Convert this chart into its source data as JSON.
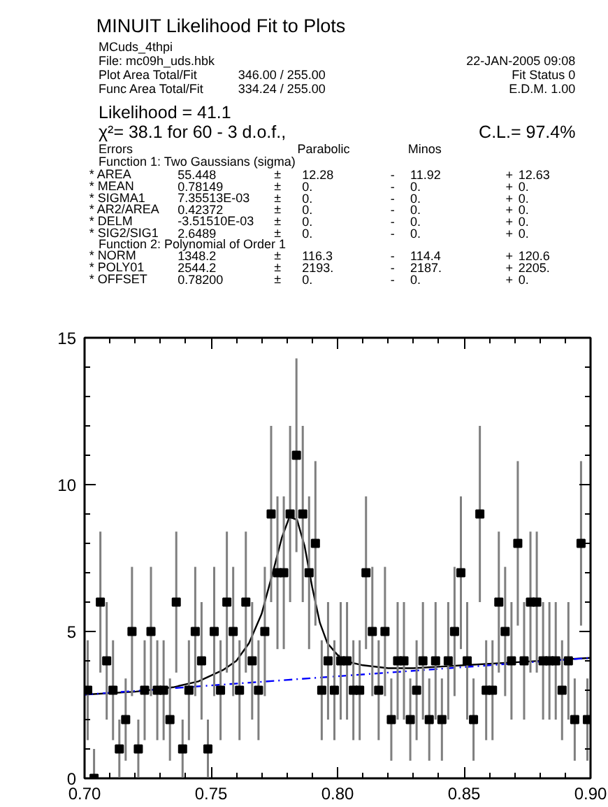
{
  "chart_data": {
    "type": "scatter",
    "title": "MINUIT Likelihood Fit to Plots",
    "annotations": [
      "MCuds_4thpi",
      "File: mc09h_uds.hbk",
      "22-JAN-2005 09:08",
      "Plot Area Total/Fit",
      "346.00 / 255.00",
      "Fit Status 0",
      "Func Area Total/Fit",
      "334.24 / 255.00",
      "E.D.M. 1.00",
      "Likelihood = 41.1",
      "χ²= 38.1 for 60 - 3 d.o.f.,",
      "C.L.= 97.4%",
      "Errors",
      "Parabolic",
      "Minos",
      "Function 1: Two Gaussians (sigma)",
      "* AREA",
      "55.448",
      "±",
      "12.28",
      "-",
      "11.92",
      "+",
      "12.63",
      "* MEAN",
      "0.78149",
      "±",
      "0.",
      "-",
      "0.",
      "+",
      "0.",
      "* SIGMA1",
      "7.35513E-03",
      "±",
      "0.",
      "-",
      "0.",
      "+",
      "0.",
      "* AR2/AREA",
      "0.42372",
      "±",
      "0.",
      "-",
      "0.",
      "+",
      "0.",
      "* DELM",
      "-3.51510E-03",
      "±",
      "0.",
      "-",
      "0.",
      "+",
      "0.",
      "* SIG2/SIG1",
      "2.6489",
      "±",
      "0.",
      "-",
      "0.",
      "+",
      "0.",
      "Function 2: Polynomial of Order 1",
      "* NORM",
      "1348.2",
      "±",
      "116.3",
      "-",
      "114.4",
      "+",
      "120.6",
      "* POLY01",
      "2544.2",
      "±",
      "2193.",
      "-",
      "2187.",
      "+",
      "2205.",
      "* OFFSET",
      "0.78200",
      "±",
      "0.",
      "-",
      "0.",
      "+",
      "0."
    ],
    "xlim": [
      0.7,
      0.9
    ],
    "ylim": [
      0,
      15
    ],
    "xticks": [
      {
        "value": 0.7,
        "label": "0.70"
      },
      {
        "value": 0.71,
        "label": null
      },
      {
        "value": 0.72,
        "label": null
      },
      {
        "value": 0.73,
        "label": null
      },
      {
        "value": 0.74,
        "label": null
      },
      {
        "value": 0.75,
        "label": "0.75"
      },
      {
        "value": 0.76,
        "label": null
      },
      {
        "value": 0.77,
        "label": null
      },
      {
        "value": 0.78,
        "label": null
      },
      {
        "value": 0.79,
        "label": null
      },
      {
        "value": 0.8,
        "label": "0.80"
      },
      {
        "value": 0.81,
        "label": null
      },
      {
        "value": 0.82,
        "label": null
      },
      {
        "value": 0.83,
        "label": null
      },
      {
        "value": 0.84,
        "label": null
      },
      {
        "value": 0.85,
        "label": "0.85"
      },
      {
        "value": 0.86,
        "label": null
      },
      {
        "value": 0.87,
        "label": null
      },
      {
        "value": 0.88,
        "label": null
      },
      {
        "value": 0.89,
        "label": null
      },
      {
        "value": 0.9,
        "label": "0.90"
      }
    ],
    "yticks": [
      0,
      {
        "value": 1,
        "label": null
      },
      {
        "value": 2,
        "label": null
      },
      {
        "value": 3,
        "label": null
      },
      {
        "value": 4,
        "label": null
      },
      5,
      {
        "value": 6,
        "label": null
      },
      {
        "value": 7,
        "label": null
      },
      {
        "value": 8,
        "label": null
      },
      {
        "value": 9,
        "label": null
      },
      10,
      {
        "value": 11,
        "label": null
      },
      {
        "value": 12,
        "label": null
      },
      {
        "value": 13,
        "label": null
      },
      {
        "value": 14,
        "label": null
      },
      15
    ],
    "series": [
      {
        "color": "#000000",
        "marker": "square",
        "x": [
          0.70125,
          0.70375,
          0.70625,
          0.70875,
          0.71125,
          0.71375,
          0.71625,
          0.71875,
          0.72125,
          0.72375,
          0.72625,
          0.72875,
          0.73125,
          0.73375,
          0.73625,
          0.73875,
          0.74125,
          0.74375,
          0.74625,
          0.74875,
          0.75125,
          0.75375,
          0.75625,
          0.75875,
          0.76125,
          0.76375,
          0.76625,
          0.76875,
          0.77125,
          0.77375,
          0.77625,
          0.77875,
          0.78125,
          0.78375,
          0.78625,
          0.78875,
          0.79125,
          0.79375,
          0.79625,
          0.79875,
          0.80125,
          0.80375,
          0.80625,
          0.80875,
          0.81125,
          0.81375,
          0.81625,
          0.81875,
          0.82125,
          0.82375,
          0.82625,
          0.82875,
          0.83125,
          0.83375,
          0.83625,
          0.83875,
          0.84125,
          0.84375,
          0.84625,
          0.84875,
          0.85125,
          0.85375,
          0.85625,
          0.85875,
          0.86125,
          0.86375,
          0.86625,
          0.86875,
          0.87125,
          0.87375,
          0.87625,
          0.87875,
          0.88125,
          0.88375,
          0.88625,
          0.88875,
          0.89125,
          0.89375,
          0.89625,
          0.89875
        ],
        "values": [
          3,
          0,
          6,
          4,
          3,
          1,
          2,
          5,
          1,
          3,
          5,
          3,
          3,
          2,
          6,
          1,
          3,
          5,
          4,
          1,
          5,
          3,
          6,
          5,
          3,
          6,
          4,
          3,
          5,
          9,
          7,
          7,
          9,
          11,
          9,
          7,
          8,
          3,
          4,
          3,
          4,
          4,
          3,
          3,
          7,
          5,
          3,
          5,
          2,
          4,
          4,
          2,
          3,
          4,
          2,
          4,
          2,
          4,
          5,
          7,
          4,
          2,
          9,
          3,
          3,
          6,
          5,
          4,
          8,
          4,
          6,
          6,
          4,
          4,
          4,
          3,
          4,
          2,
          8,
          2
        ],
        "errors": [
          1.7,
          [
            0,
            1
          ],
          2.4,
          2,
          1.7,
          1,
          1.4,
          2.2,
          1,
          1.7,
          2.2,
          1.7,
          1.7,
          1.4,
          2.4,
          1,
          1.7,
          2.2,
          2,
          1,
          2.2,
          1.7,
          2.4,
          2.2,
          1.7,
          2.4,
          2,
          1.7,
          2.2,
          3,
          2.6,
          2.6,
          3,
          3.3,
          3,
          2.6,
          2.8,
          1.7,
          2,
          1.7,
          2,
          2,
          1.7,
          1.7,
          2.6,
          2.2,
          1.7,
          2.2,
          1.4,
          2,
          2,
          1.4,
          1.7,
          2,
          1.4,
          2,
          1.4,
          2,
          2.2,
          2.6,
          2,
          1.4,
          3,
          1.7,
          1.7,
          2.4,
          2.2,
          2,
          2.8,
          2,
          2.4,
          2.4,
          2,
          2,
          2,
          1.7,
          2,
          1.4,
          2.8,
          1.4
        ]
      },
      {
        "type": "line",
        "color": "#000000",
        "line_style": "solid",
        "x": [
          0.7,
          0.72,
          0.735,
          0.745,
          0.755,
          0.76,
          0.765,
          0.77,
          0.775,
          0.778,
          0.781,
          0.784,
          0.787,
          0.79,
          0.793,
          0.796,
          0.8,
          0.805,
          0.81,
          0.82,
          0.83,
          0.84,
          0.85,
          0.87,
          0.9
        ],
        "values": [
          2.85,
          2.95,
          3.1,
          3.3,
          3.7,
          4.0,
          4.6,
          5.6,
          7.2,
          8.2,
          8.9,
          8.8,
          7.9,
          6.5,
          5.3,
          4.6,
          4.2,
          3.95,
          3.85,
          3.75,
          3.75,
          3.8,
          3.85,
          3.95,
          4.1
        ]
      },
      {
        "type": "line",
        "color": "#0000ff",
        "line_style": "dashed",
        "x": [
          0.7,
          0.9
        ],
        "values": [
          2.85,
          4.1
        ]
      }
    ]
  }
}
